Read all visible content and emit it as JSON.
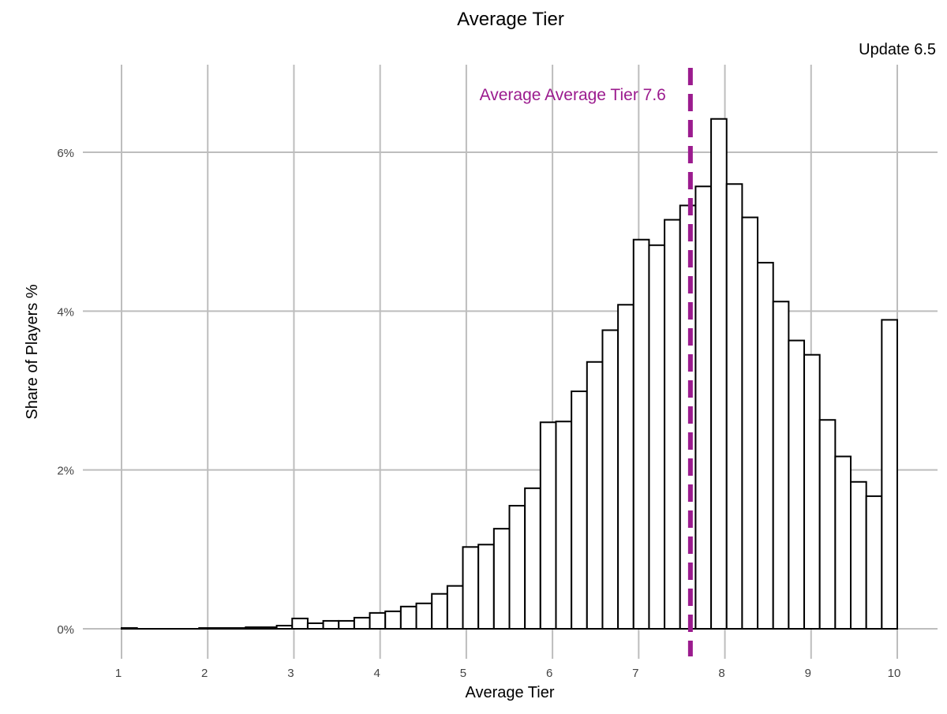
{
  "colors": {
    "accent": "#9b1b8e",
    "grid": "#bdbdbd",
    "bar_fill": "#ffffff",
    "bar_stroke": "#000000"
  },
  "chart_data": {
    "type": "bar",
    "title": "Average Tier",
    "subtitle": "Update 6.5",
    "xlabel": "Average Tier",
    "ylabel": "Share of Players %",
    "xlim": [
      0.95,
      10.2
    ],
    "ylim": [
      -0.3,
      7.0
    ],
    "x_ticks": [
      1,
      2,
      3,
      4,
      5,
      6,
      7,
      8,
      9,
      10
    ],
    "x_tick_labels": [
      "1",
      "2",
      "3",
      "4",
      "5",
      "6",
      "7",
      "8",
      "9",
      "10"
    ],
    "y_ticks": [
      0,
      2,
      4,
      6
    ],
    "y_tick_labels": [
      "0%",
      "2%",
      "4%",
      "6%"
    ],
    "grid": true,
    "bins": {
      "centers": [
        1.09,
        1.27,
        1.45,
        1.63,
        1.81,
        1.99,
        2.17,
        2.35,
        2.53,
        2.71,
        2.89,
        3.07,
        3.25,
        3.43,
        3.61,
        3.79,
        3.97,
        4.15,
        4.33,
        4.51,
        4.69,
        4.87,
        5.05,
        5.23,
        5.41,
        5.59,
        5.77,
        5.95,
        6.13,
        6.31,
        6.49,
        6.67,
        6.85,
        7.03,
        7.21,
        7.39,
        7.57,
        7.75,
        7.93,
        8.11,
        8.29,
        8.47,
        8.65,
        8.83,
        9.01,
        9.19,
        9.37,
        9.55,
        9.73,
        9.91
      ],
      "values_pct": [
        0.01,
        0.0,
        0.0,
        0.0,
        0.0,
        0.01,
        0.01,
        0.01,
        0.02,
        0.02,
        0.04,
        0.13,
        0.07,
        0.1,
        0.1,
        0.14,
        0.2,
        0.22,
        0.28,
        0.32,
        0.44,
        0.54,
        1.03,
        1.06,
        1.26,
        1.55,
        1.77,
        2.6,
        2.61,
        2.99,
        3.36,
        3.76,
        4.08,
        4.9,
        4.83,
        5.15,
        5.33,
        5.57,
        6.42,
        5.6,
        5.18,
        4.61,
        4.12,
        3.63,
        3.45,
        2.63,
        2.17,
        1.85,
        1.67,
        3.89
      ]
    },
    "mean_line": {
      "x": 7.6,
      "label": "Average Average Tier 7.6"
    }
  }
}
